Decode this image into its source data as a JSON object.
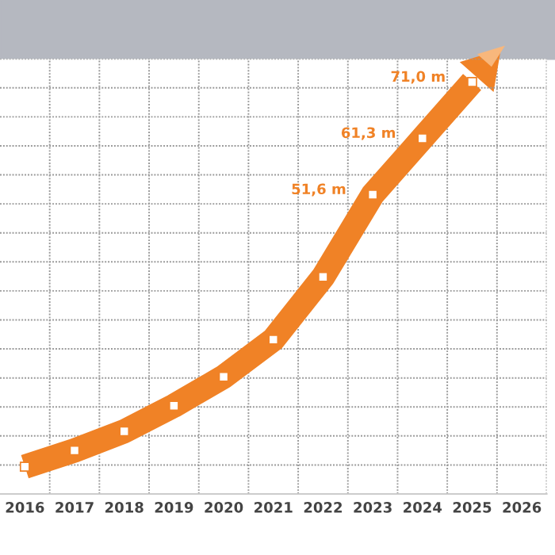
{
  "chart_data": {
    "type": "line",
    "categories": [
      "2016",
      "2017",
      "2018",
      "2019",
      "2020",
      "2021",
      "2022",
      "2023",
      "2024",
      "2025",
      "2026"
    ],
    "series": [
      {
        "color": "#f08226",
        "values": [
          4.7,
          7.5,
          10.8,
          15.2,
          20.2,
          26.6,
          37.4,
          51.6,
          61.3,
          71.0,
          null
        ],
        "value_labels": [
          null,
          null,
          null,
          null,
          null,
          null,
          null,
          "51,6 m",
          "61,3 m",
          "71,0 m",
          null
        ]
      }
    ],
    "ylim": [
      0,
      75
    ],
    "yticks": [
      {
        "value": 5,
        "label": null
      },
      {
        "value": 10,
        "label": null
      },
      {
        "value": 15,
        "label": null
      },
      {
        "value": 20,
        "label": null
      },
      {
        "value": 25,
        "label": null
      },
      {
        "value": 30,
        "label": null
      },
      {
        "value": 35,
        "label": null
      },
      {
        "value": 40,
        "label": null
      },
      {
        "value": 45,
        "label": null
      },
      {
        "value": 50,
        "label": null
      },
      {
        "value": 55,
        "label": null
      },
      {
        "value": 60,
        "label": null
      },
      {
        "value": 65,
        "label": null
      },
      {
        "value": 70,
        "label": null
      },
      {
        "value": 75,
        "label": null
      }
    ],
    "tick_labels": "x",
    "grid": true,
    "marker": "square",
    "line_style": "solid"
  }
}
